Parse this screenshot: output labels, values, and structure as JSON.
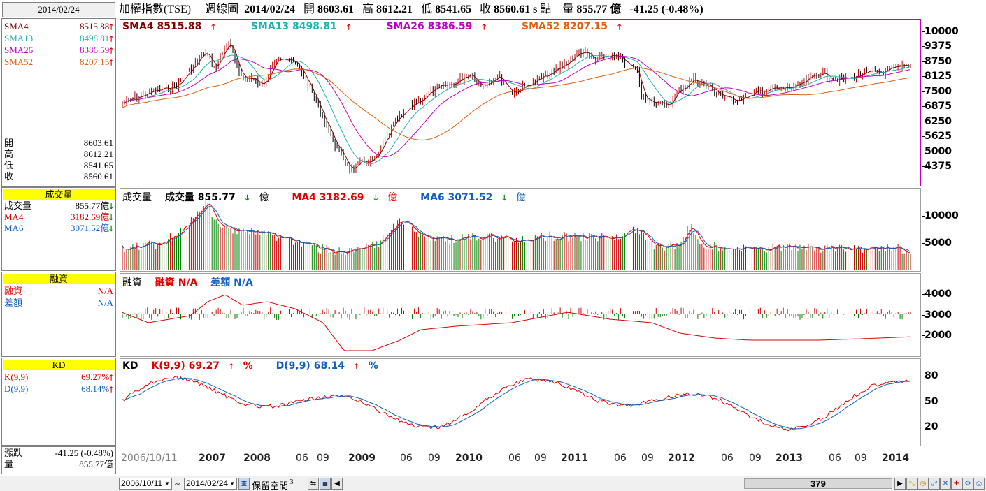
{
  "info": {
    "date": "2014/02/24",
    "sma": [
      {
        "label": "SMA4",
        "value": "8515.88",
        "color": "#800000",
        "dir": "up"
      },
      {
        "label": "SMA13",
        "value": "8498.81",
        "color": "#20b0b0",
        "dir": "up"
      },
      {
        "label": "SMA26",
        "value": "8386.59",
        "color": "#c000c0",
        "dir": "up"
      },
      {
        "label": "SMA52",
        "value": "8207.15",
        "color": "#e06010",
        "dir": "up"
      }
    ],
    "ohlc": [
      {
        "label": "開",
        "value": "8603.61"
      },
      {
        "label": "高",
        "value": "8612.21"
      },
      {
        "label": "低",
        "value": "8541.65"
      },
      {
        "label": "收",
        "value": "8560.61"
      }
    ],
    "volume_title": "成交量",
    "volume": [
      {
        "label": "成交量",
        "value": "855.77億",
        "color": "#000000",
        "dir": "down"
      },
      {
        "label": "MA4",
        "value": "3182.69億",
        "color": "#e00000",
        "dir": "down"
      },
      {
        "label": "MA6",
        "value": "3071.52億",
        "color": "#1060c0",
        "dir": "down"
      }
    ],
    "margin_title": "融資",
    "margin": [
      {
        "label": "融資",
        "value": "N/A",
        "color": "#e00000"
      },
      {
        "label": "差額",
        "value": "N/A",
        "color": "#1060c0"
      }
    ],
    "kd_title": "KD",
    "kd": [
      {
        "label": "K(9,9)",
        "value": "69.27%",
        "color": "#e00000",
        "dir": "up"
      },
      {
        "label": "D(9,9)",
        "value": "68.14%",
        "color": "#1060c0",
        "dir": "up"
      }
    ],
    "change_label": "漲跌",
    "change_value": "-41.25 (-0.48%)",
    "amount_label": "量",
    "amount_value": "855.77億"
  },
  "header": {
    "title": "加權指數(TSE)",
    "period": "週線圖",
    "date": "2014/02/24",
    "open_label": "開",
    "open": "8603.61",
    "high_label": "高",
    "high": "8612.21",
    "low_label": "低",
    "low": "8541.65",
    "close_label": "收",
    "close": "8560.61 s",
    "unit": "點",
    "vol_label": "量",
    "vol": "855.77 億",
    "change": "-41.25 (-0.48%)"
  },
  "price_legend": [
    {
      "text": "SMA4 8515.88",
      "color": "#800000",
      "dir": "up"
    },
    {
      "text": "SMA13 8498.81",
      "color": "#20b0b0",
      "dir": "up"
    },
    {
      "text": "SMA26 8386.59",
      "color": "#c000c0",
      "dir": "up"
    },
    {
      "text": "SMA52 8207.15",
      "color": "#e06010",
      "dir": "up"
    }
  ],
  "volume_legend": {
    "title": "成交量",
    "vol": "成交量 855.77",
    "vol_unit": "億",
    "ma4": "MA4 3182.69",
    "ma4_unit": "億",
    "ma6": "MA6 3071.52",
    "ma6_unit": "億"
  },
  "margin_legend": {
    "title": "融資",
    "a": "融資 N/A",
    "b": "差額 N/A"
  },
  "kd_legend": {
    "title": "KD",
    "k": "K(9,9) 69.27",
    "k_pct": "%",
    "d": "D(9,9) 68.14",
    "d_pct": "%"
  },
  "price_axis": [
    "10000",
    "9375",
    "8750",
    "8125",
    "7500",
    "6875",
    "6250",
    "5625",
    "5000",
    "4375"
  ],
  "volume_axis": [
    "10000",
    "5000"
  ],
  "margin_axis": [
    "4000",
    "3000",
    "2000"
  ],
  "kd_axis": [
    "80",
    "50",
    "20"
  ],
  "xaxis": [
    {
      "t": "2006/10/11",
      "s": "g"
    },
    {
      "t": "2007",
      "s": "b"
    },
    {
      "t": "2008",
      "s": "b"
    },
    {
      "t": "06",
      "s": ""
    },
    {
      "t": "09",
      "s": ""
    },
    {
      "t": "2009",
      "s": "b"
    },
    {
      "t": "06",
      "s": ""
    },
    {
      "t": "09",
      "s": ""
    },
    {
      "t": "2010",
      "s": "b"
    },
    {
      "t": "06",
      "s": ""
    },
    {
      "t": "09",
      "s": ""
    },
    {
      "t": "2011",
      "s": "b"
    },
    {
      "t": "06",
      "s": ""
    },
    {
      "t": "09",
      "s": ""
    },
    {
      "t": "2012",
      "s": "b"
    },
    {
      "t": "06",
      "s": ""
    },
    {
      "t": "09",
      "s": ""
    },
    {
      "t": "2013",
      "s": "b"
    },
    {
      "t": "06",
      "s": ""
    },
    {
      "t": "09",
      "s": ""
    },
    {
      "t": "2014",
      "s": "b"
    }
  ],
  "toolbar": {
    "start_date": "2006/10/11",
    "tilde": "~",
    "end_date": "2014/02/24",
    "reserve_label": "保留空間",
    "reserve_value": "3",
    "scroll_value": "379"
  },
  "colors": {
    "up": "#e00000",
    "down": "#008000",
    "sma4": "#800000",
    "sma13": "#20b0b0",
    "sma26": "#c000c0",
    "sma52": "#e06010",
    "ma6": "#1060c0"
  }
}
